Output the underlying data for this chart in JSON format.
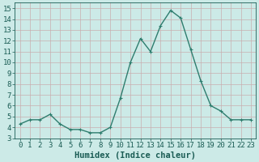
{
  "x": [
    0,
    1,
    2,
    3,
    4,
    5,
    6,
    7,
    8,
    9,
    10,
    11,
    12,
    13,
    14,
    15,
    16,
    17,
    18,
    19,
    20,
    21,
    22,
    23
  ],
  "y": [
    4.3,
    4.7,
    4.7,
    5.2,
    4.3,
    3.8,
    3.8,
    3.5,
    3.5,
    4.0,
    6.7,
    10.0,
    12.2,
    11.0,
    13.4,
    14.8,
    14.1,
    11.2,
    8.3,
    6.0,
    5.5,
    4.7,
    4.7,
    4.7
  ],
  "line_color": "#2e7d6e",
  "marker": "+",
  "marker_size": 3,
  "line_width": 1.0,
  "bg_color": "#cceae7",
  "grid_major_color": "#b0d4d0",
  "grid_minor_color": "#c4e3e0",
  "tick_color": "#1a5c54",
  "xlabel": "Humidex (Indice chaleur)",
  "xlim": [
    -0.5,
    23.5
  ],
  "ylim": [
    3,
    15.5
  ],
  "yticks": [
    3,
    4,
    5,
    6,
    7,
    8,
    9,
    10,
    11,
    12,
    13,
    14,
    15
  ],
  "xticks": [
    0,
    1,
    2,
    3,
    4,
    5,
    6,
    7,
    8,
    9,
    10,
    11,
    12,
    13,
    14,
    15,
    16,
    17,
    18,
    19,
    20,
    21,
    22,
    23
  ],
  "xlabel_fontsize": 7.5,
  "tick_fontsize": 6.5
}
